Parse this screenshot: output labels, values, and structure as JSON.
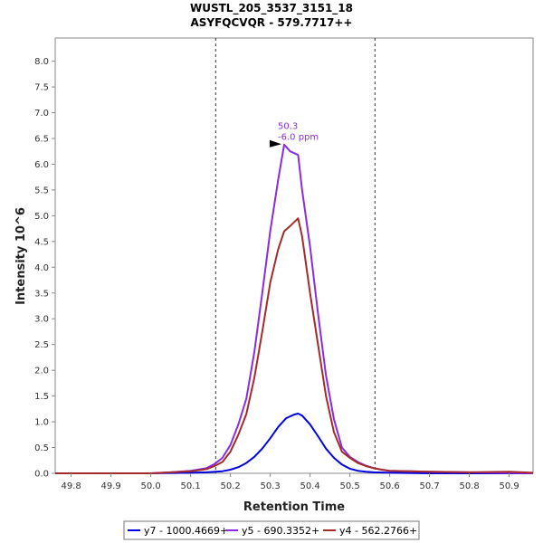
{
  "chart_data": {
    "type": "line",
    "title": "WUSTL_205_3537_3151_18",
    "subtitle": "ASYFQCVQR - 579.7717++",
    "xlabel": "Retention Time",
    "ylabel": "Intensity 10^6",
    "xlim": [
      49.76,
      50.96
    ],
    "ylim": [
      0,
      8.45
    ],
    "xticks": [
      49.8,
      49.9,
      50.0,
      50.1,
      50.2,
      50.3,
      50.4,
      50.5,
      50.6,
      50.7,
      50.8,
      50.9
    ],
    "xtick_labels": [
      "49.8",
      "49.9",
      "50.0",
      "50.1",
      "50.2",
      "50.3",
      "50.4",
      "50.5",
      "50.6",
      "50.7",
      "50.8",
      "50.9"
    ],
    "yticks": [
      0.0,
      0.5,
      1.0,
      1.5,
      2.0,
      2.5,
      3.0,
      3.5,
      4.0,
      4.5,
      5.0,
      5.5,
      6.0,
      6.5,
      7.0,
      7.5,
      8.0
    ],
    "ytick_labels": [
      "0.0",
      "0.5",
      "1.0",
      "1.5",
      "2.0",
      "2.5",
      "3.0",
      "3.5",
      "4.0",
      "4.5",
      "5.0",
      "5.5",
      "6.0",
      "6.5",
      "7.0",
      "7.5",
      "8.0"
    ],
    "grid": false,
    "legend_position": "bottom",
    "boundaries": [
      50.163,
      50.563
    ],
    "annotation": {
      "x": 50.335,
      "y": 6.4,
      "lines": [
        "50.3",
        "-6.0 ppm"
      ],
      "color": "#8a2be2"
    },
    "series": [
      {
        "name": "y7 - 1000.4669+",
        "color": "#0000e0",
        "x": [
          49.76,
          50.0,
          50.1,
          50.14,
          50.18,
          50.2,
          50.22,
          50.24,
          50.26,
          50.28,
          50.3,
          50.32,
          50.34,
          50.36,
          50.37,
          50.38,
          50.4,
          50.42,
          50.44,
          50.46,
          50.48,
          50.5,
          50.52,
          50.54,
          50.56,
          50.6,
          50.7,
          50.96
        ],
        "y": [
          0.0,
          0.0,
          0.01,
          0.02,
          0.04,
          0.07,
          0.12,
          0.2,
          0.32,
          0.48,
          0.68,
          0.9,
          1.07,
          1.14,
          1.16,
          1.12,
          0.95,
          0.72,
          0.48,
          0.3,
          0.17,
          0.09,
          0.05,
          0.03,
          0.02,
          0.01,
          0.0,
          0.0
        ]
      },
      {
        "name": "y5 - 690.3352+",
        "color": "#8a2be2",
        "x": [
          49.76,
          50.0,
          50.05,
          50.1,
          50.14,
          50.16,
          50.18,
          50.2,
          50.22,
          50.24,
          50.26,
          50.28,
          50.3,
          50.32,
          50.335,
          50.35,
          50.37,
          50.38,
          50.4,
          50.42,
          50.44,
          50.46,
          50.48,
          50.5,
          50.52,
          50.54,
          50.56,
          50.58,
          50.6,
          50.65,
          50.7,
          50.8,
          50.96
        ],
        "y": [
          0.0,
          0.0,
          0.02,
          0.05,
          0.1,
          0.18,
          0.3,
          0.55,
          0.95,
          1.45,
          2.35,
          3.5,
          4.7,
          5.7,
          6.38,
          6.25,
          6.18,
          5.5,
          4.4,
          3.1,
          1.9,
          1.05,
          0.5,
          0.32,
          0.22,
          0.15,
          0.1,
          0.07,
          0.05,
          0.04,
          0.03,
          0.02,
          0.0
        ]
      },
      {
        "name": "y4 - 562.2766+",
        "color": "#a52a2a",
        "x": [
          49.76,
          50.0,
          50.05,
          50.1,
          50.14,
          50.16,
          50.18,
          50.2,
          50.22,
          50.24,
          50.26,
          50.28,
          50.3,
          50.32,
          50.335,
          50.35,
          50.37,
          50.38,
          50.4,
          50.42,
          50.44,
          50.46,
          50.48,
          50.5,
          50.52,
          50.54,
          50.56,
          50.58,
          50.6,
          50.65,
          50.7,
          50.8,
          50.9,
          50.96
        ],
        "y": [
          0.0,
          0.0,
          0.02,
          0.04,
          0.08,
          0.14,
          0.22,
          0.42,
          0.75,
          1.15,
          1.85,
          2.75,
          3.7,
          4.35,
          4.7,
          4.8,
          4.95,
          4.6,
          3.5,
          2.5,
          1.5,
          0.8,
          0.42,
          0.3,
          0.2,
          0.14,
          0.1,
          0.07,
          0.05,
          0.04,
          0.03,
          0.02,
          0.03,
          0.01
        ]
      }
    ]
  }
}
